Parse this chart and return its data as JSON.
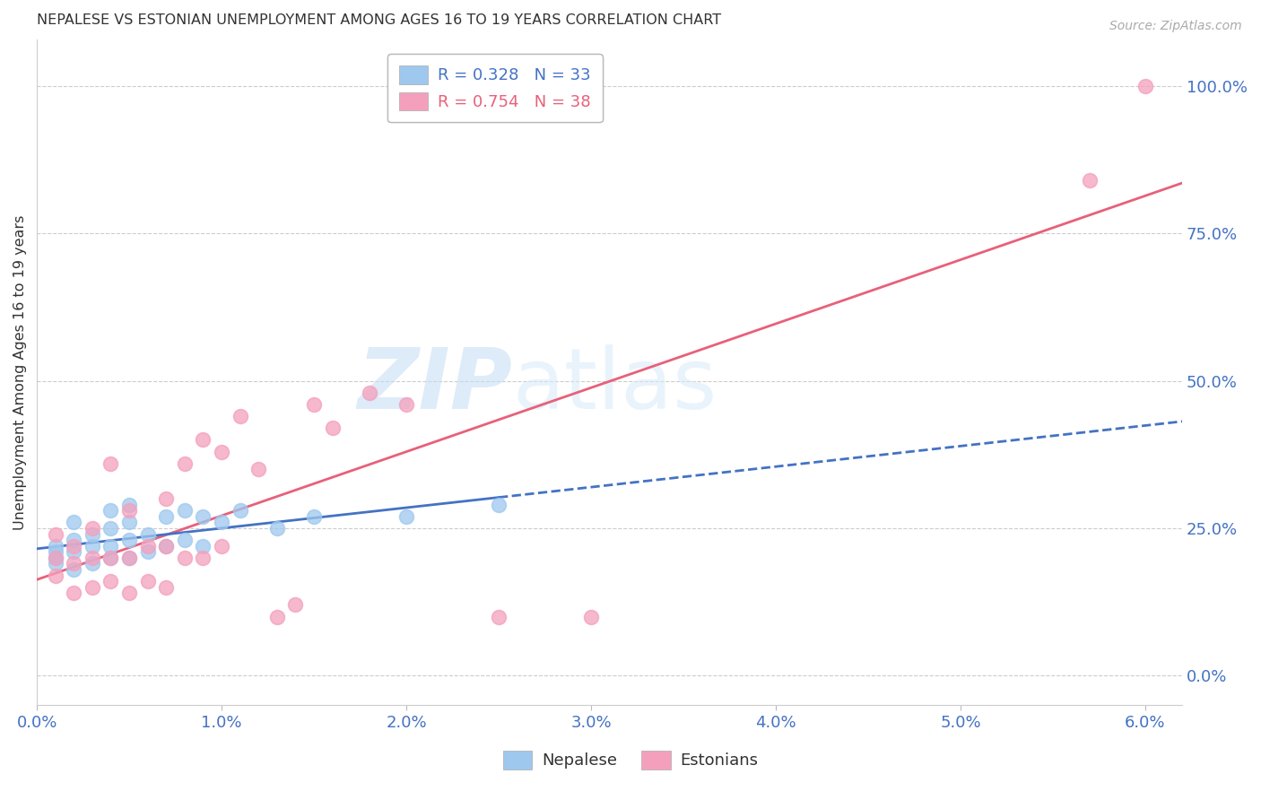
{
  "title": "NEPALESE VS ESTONIAN UNEMPLOYMENT AMONG AGES 16 TO 19 YEARS CORRELATION CHART",
  "source": "Source: ZipAtlas.com",
  "ylabel": "Unemployment Among Ages 16 to 19 years",
  "xlim": [
    0.0,
    0.062
  ],
  "ylim": [
    -0.05,
    1.08
  ],
  "xticks": [
    0.0,
    0.01,
    0.02,
    0.03,
    0.04,
    0.05,
    0.06
  ],
  "xtick_labels": [
    "0.0%",
    "1.0%",
    "2.0%",
    "3.0%",
    "4.0%",
    "5.0%",
    "6.0%"
  ],
  "yticks": [
    0.0,
    0.25,
    0.5,
    0.75,
    1.0
  ],
  "ytick_labels": [
    "0.0%",
    "25.0%",
    "50.0%",
    "75.0%",
    "100.0%"
  ],
  "nepalese_color": "#9EC8EE",
  "estonian_color": "#F4A0BC",
  "nepalese_line_color": "#4472C4",
  "estonian_line_color": "#E8607A",
  "watermark_zip": "ZIP",
  "watermark_atlas": "atlas",
  "legend_r_nepalese": "R = 0.328",
  "legend_n_nepalese": "N = 33",
  "legend_r_estonian": "R = 0.754",
  "legend_n_estonian": "N = 38",
  "nepalese_x": [
    0.001,
    0.001,
    0.001,
    0.001,
    0.002,
    0.002,
    0.002,
    0.002,
    0.003,
    0.003,
    0.003,
    0.004,
    0.004,
    0.004,
    0.004,
    0.005,
    0.005,
    0.005,
    0.005,
    0.006,
    0.006,
    0.007,
    0.007,
    0.008,
    0.008,
    0.009,
    0.009,
    0.01,
    0.011,
    0.013,
    0.015,
    0.02,
    0.025
  ],
  "nepalese_y": [
    0.19,
    0.2,
    0.21,
    0.22,
    0.18,
    0.21,
    0.23,
    0.26,
    0.19,
    0.22,
    0.24,
    0.2,
    0.22,
    0.25,
    0.28,
    0.2,
    0.23,
    0.26,
    0.29,
    0.21,
    0.24,
    0.22,
    0.27,
    0.23,
    0.28,
    0.22,
    0.27,
    0.26,
    0.28,
    0.25,
    0.27,
    0.27,
    0.29
  ],
  "estonian_x": [
    0.001,
    0.001,
    0.001,
    0.002,
    0.002,
    0.002,
    0.003,
    0.003,
    0.003,
    0.004,
    0.004,
    0.004,
    0.005,
    0.005,
    0.005,
    0.006,
    0.006,
    0.007,
    0.007,
    0.007,
    0.008,
    0.008,
    0.009,
    0.009,
    0.01,
    0.01,
    0.011,
    0.012,
    0.013,
    0.014,
    0.015,
    0.016,
    0.018,
    0.02,
    0.025,
    0.03,
    0.057,
    0.06
  ],
  "estonian_y": [
    0.17,
    0.2,
    0.24,
    0.14,
    0.19,
    0.22,
    0.15,
    0.2,
    0.25,
    0.16,
    0.2,
    0.36,
    0.14,
    0.2,
    0.28,
    0.16,
    0.22,
    0.15,
    0.22,
    0.3,
    0.2,
    0.36,
    0.2,
    0.4,
    0.22,
    0.38,
    0.44,
    0.35,
    0.1,
    0.12,
    0.46,
    0.42,
    0.48,
    0.46,
    0.1,
    0.1,
    0.84,
    1.0
  ],
  "title_color": "#333333",
  "axis_color": "#4472C4",
  "grid_color": "#CCCCCC",
  "background_color": "#FFFFFF"
}
